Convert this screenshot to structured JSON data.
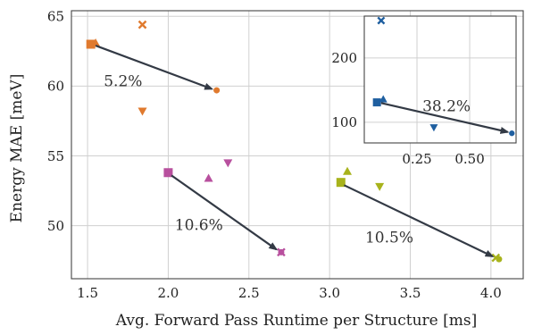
{
  "chart_data": [
    {
      "panel": "main",
      "type": "scatter",
      "xlabel": "Avg. Forward Pass Runtime per Structure [ms]",
      "ylabel": "Energy MAE [meV]",
      "xlim": [
        1.4,
        4.2
      ],
      "ylim": [
        46.2,
        65.4
      ],
      "xticks": [
        1.5,
        2.0,
        2.5,
        3.0,
        3.5,
        4.0
      ],
      "xtick_labels": [
        "1.5",
        "2.0",
        "2.5",
        "3.0",
        "3.5",
        "4.0"
      ],
      "yticks": [
        50,
        55,
        60,
        65
      ],
      "ytick_labels": [
        "50",
        "55",
        "60",
        "65"
      ],
      "grid": true,
      "series": [
        {
          "color": "#e07a2e",
          "points": [
            {
              "x": 1.52,
              "y": 63.0,
              "marker": "square"
            },
            {
              "x": 1.55,
              "y": 63.1,
              "marker": "triangle-up"
            },
            {
              "x": 1.84,
              "y": 64.4,
              "marker": "x"
            },
            {
              "x": 1.84,
              "y": 58.2,
              "marker": "triangle-down"
            },
            {
              "x": 2.3,
              "y": 59.7,
              "marker": "circle"
            }
          ],
          "arrow": {
            "from": [
              1.55,
              62.9
            ],
            "to": [
              2.27,
              59.8
            ]
          },
          "annotation": {
            "text": "5.2%",
            "x": 1.72,
            "y": 60.0
          }
        },
        {
          "color": "#b8509e",
          "points": [
            {
              "x": 2.0,
              "y": 53.8,
              "marker": "square"
            },
            {
              "x": 2.25,
              "y": 53.4,
              "marker": "triangle-up"
            },
            {
              "x": 2.37,
              "y": 54.5,
              "marker": "triangle-down"
            },
            {
              "x": 2.7,
              "y": 48.1,
              "marker": "x"
            },
            {
              "x": 2.7,
              "y": 48.1,
              "marker": "circle"
            }
          ],
          "arrow": {
            "from": [
              2.02,
              53.6
            ],
            "to": [
              2.67,
              48.3
            ]
          },
          "annotation": {
            "text": "10.6%",
            "x": 2.19,
            "y": 49.7
          }
        },
        {
          "color": "#a8b31c",
          "points": [
            {
              "x": 3.07,
              "y": 53.1,
              "marker": "square"
            },
            {
              "x": 3.11,
              "y": 53.9,
              "marker": "triangle-up"
            },
            {
              "x": 3.31,
              "y": 52.8,
              "marker": "triangle-down"
            },
            {
              "x": 4.03,
              "y": 47.7,
              "marker": "x"
            },
            {
              "x": 4.05,
              "y": 47.6,
              "marker": "circle"
            }
          ],
          "arrow": {
            "from": [
              3.09,
              52.9
            ],
            "to": [
              4.01,
              47.8
            ]
          },
          "annotation": {
            "text": "10.5%",
            "x": 3.37,
            "y": 48.8
          }
        }
      ]
    },
    {
      "panel": "inset",
      "type": "scatter",
      "xlim": [
        0.0,
        0.72
      ],
      "ylim": [
        68,
        265
      ],
      "xticks": [
        0.25,
        0.5
      ],
      "xtick_labels": [
        "0.25",
        "0.50"
      ],
      "yticks": [
        100,
        200
      ],
      "ytick_labels": [
        "100",
        "200"
      ],
      "grid": true,
      "series": [
        {
          "color": "#1f5fa0",
          "points": [
            {
              "x": 0.08,
              "y": 258,
              "marker": "x"
            },
            {
              "x": 0.06,
              "y": 131,
              "marker": "square"
            },
            {
              "x": 0.09,
              "y": 136,
              "marker": "triangle-up"
            },
            {
              "x": 0.33,
              "y": 92,
              "marker": "triangle-down"
            },
            {
              "x": 0.7,
              "y": 83,
              "marker": "circle"
            }
          ],
          "arrow": {
            "from": [
              0.08,
              130
            ],
            "to": [
              0.68,
              85
            ]
          },
          "annotation": {
            "text": "38.2%",
            "x": 0.39,
            "y": 117
          }
        }
      ]
    }
  ]
}
